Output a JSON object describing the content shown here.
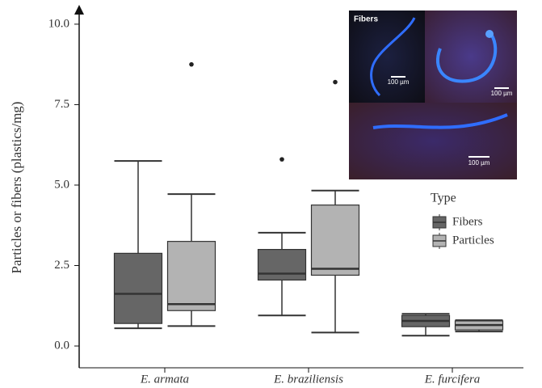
{
  "chart_data": {
    "type": "boxplot",
    "y_label": "Particles or fibers (plastics/mg)",
    "categories": [
      "E. armata",
      "E. braziliensis",
      "E. furcifera"
    ],
    "ylim": [
      -0.2,
      10.5
    ],
    "yticks": [
      {
        "value": 0,
        "label": "0.0"
      },
      {
        "value": 2.5,
        "label": "2.5"
      },
      {
        "value": 5,
        "label": "5.0"
      },
      {
        "value": 7.5,
        "label": "7.5"
      },
      {
        "value": 10,
        "label": "10.0"
      }
    ],
    "legend_title": "Type",
    "series": [
      {
        "name": "Fibers",
        "color": "#666666",
        "boxes": [
          {
            "min": 0.55,
            "q1": 0.7,
            "median": 1.62,
            "q3": 2.88,
            "max": 5.75,
            "outliers": []
          },
          {
            "min": 0.95,
            "q1": 2.05,
            "median": 2.25,
            "q3": 3.0,
            "max": 3.52,
            "outliers": [
              5.8
            ]
          },
          {
            "min": 0.32,
            "q1": 0.6,
            "median": 0.78,
            "q3": 0.95,
            "max": 1.0,
            "outliers": []
          }
        ]
      },
      {
        "name": "Particles",
        "color": "#b3b3b3",
        "boxes": [
          {
            "min": 0.62,
            "q1": 1.1,
            "median": 1.3,
            "q3": 3.25,
            "max": 4.72,
            "outliers": [
              8.75
            ]
          },
          {
            "min": 0.42,
            "q1": 2.2,
            "median": 2.4,
            "q3": 4.38,
            "max": 4.83,
            "outliers": [
              8.2
            ]
          },
          {
            "min": 0.45,
            "q1": 0.5,
            "median": 0.65,
            "q3": 0.78,
            "max": 0.8,
            "outliers": []
          }
        ]
      }
    ],
    "inset": {
      "title": "Fibers",
      "scale_labels": [
        "100 µm",
        "100 µm",
        "100 µm"
      ]
    }
  }
}
